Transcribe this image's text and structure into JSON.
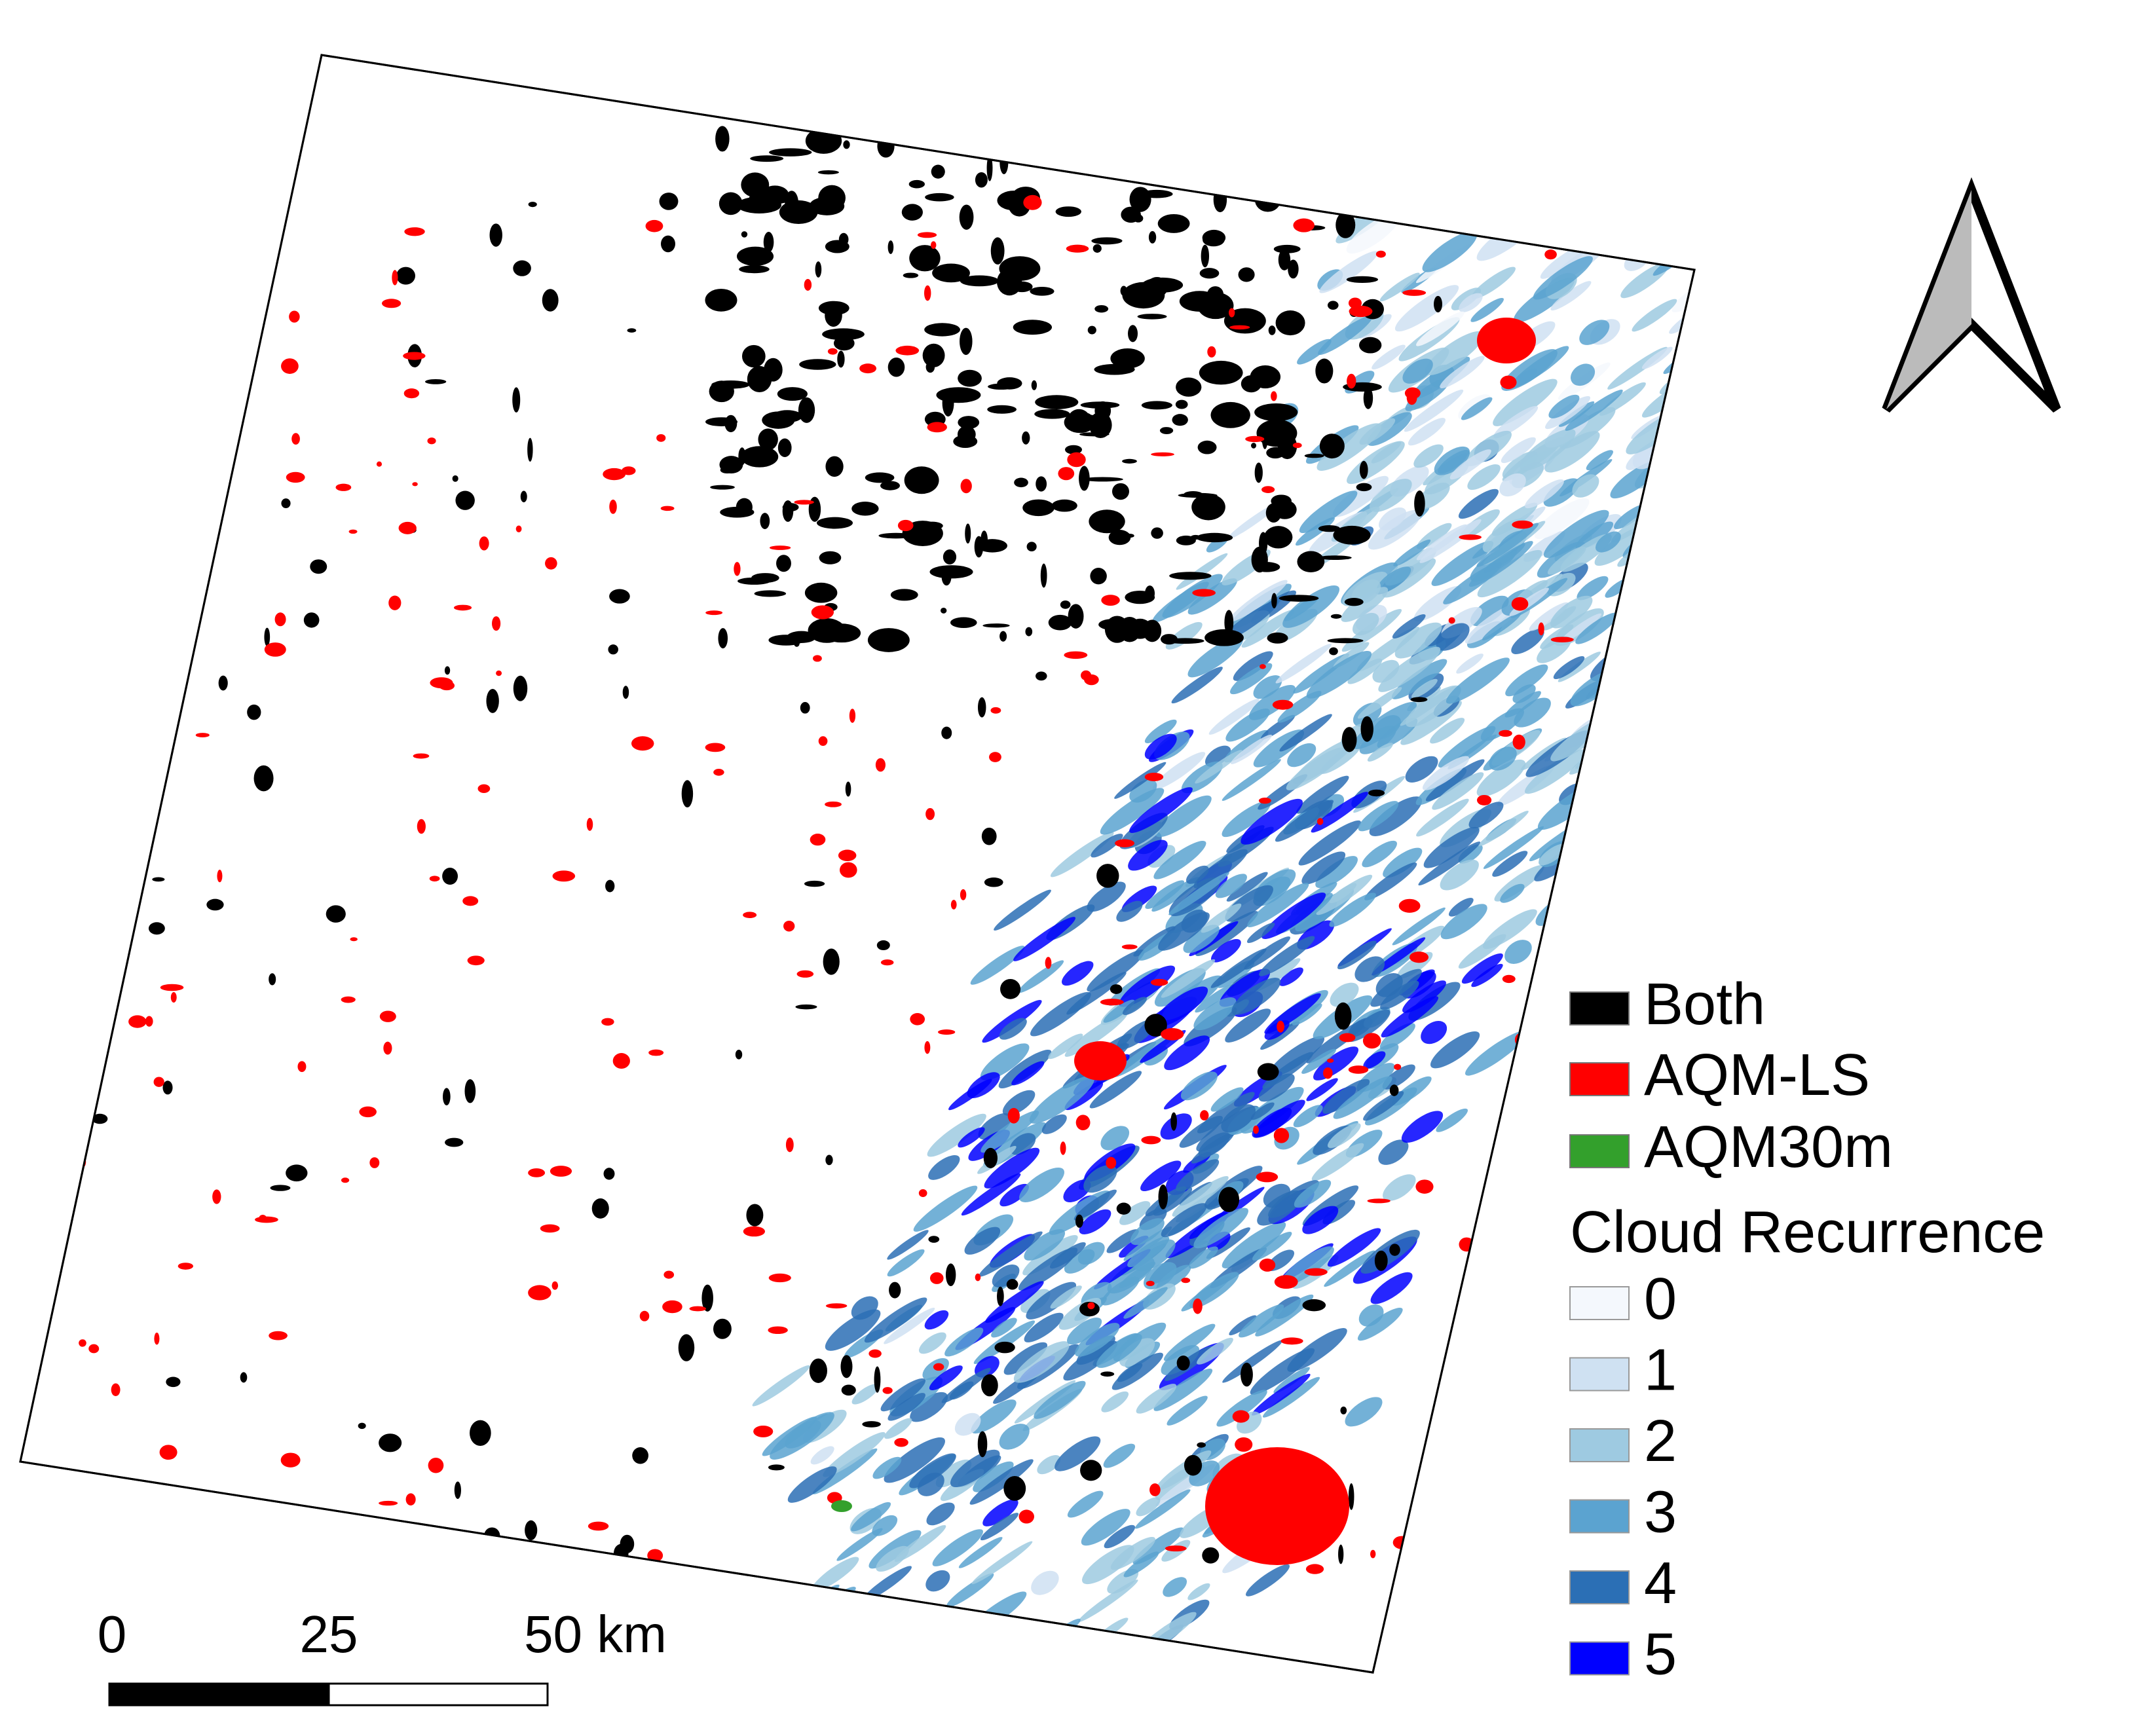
{
  "legend": {
    "items": [
      {
        "label": "Both",
        "color": "#000000"
      },
      {
        "label": "AQM-LS",
        "color": "#ff0000"
      },
      {
        "label": "AQM30m",
        "color": "#33a02c"
      }
    ],
    "title": "Cloud Recurrence",
    "classes": [
      {
        "label": "0",
        "color": "#f4f8fd"
      },
      {
        "label": "1",
        "color": "#cfe1f2"
      },
      {
        "label": "2",
        "color": "#9ecae1"
      },
      {
        "label": "3",
        "color": "#5ba3d0"
      },
      {
        "label": "4",
        "color": "#2b6fb5"
      },
      {
        "label": "5",
        "color": "#0000ff"
      }
    ]
  },
  "scale_bar": {
    "labels": [
      "0",
      "25",
      "50 km"
    ]
  }
}
